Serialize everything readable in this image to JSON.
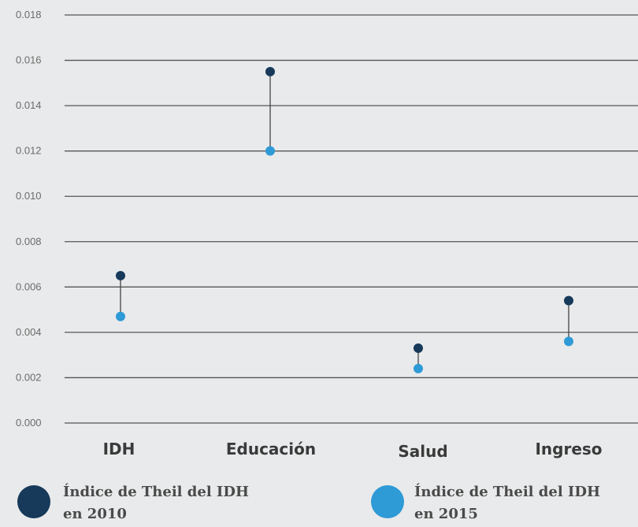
{
  "chart_data": {
    "type": "dumbbell",
    "title": "",
    "xlabel": "",
    "ylabel": "",
    "ylim": [
      0,
      0.018
    ],
    "yticks": [
      "0.000",
      "0.002",
      "0.004",
      "0.006",
      "0.008",
      "0.010",
      "0.012",
      "0.014",
      "0.016",
      "0.018"
    ],
    "grid": true,
    "legend_placement": "bottom",
    "categories": [
      "IDH",
      "Educación",
      "Salud",
      "Ingreso"
    ],
    "series": [
      {
        "name": "Índice de Theil del IDH en 2010",
        "legend_lines": [
          "Índice de Theil del IDH",
          "en 2010"
        ],
        "color": "#17395a",
        "values": [
          0.0065,
          0.0155,
          0.0033,
          0.0054
        ]
      },
      {
        "name": "Índice de Theil del IDH en 2015",
        "legend_lines": [
          "Índice de Theil del IDH",
          "en 2015"
        ],
        "color": "#2e9ad6",
        "values": [
          0.0047,
          0.012,
          0.0024,
          0.0036
        ]
      }
    ],
    "colors": {
      "gridline": "#555555",
      "connector": "#444444",
      "background": "#e9eaeb"
    }
  }
}
